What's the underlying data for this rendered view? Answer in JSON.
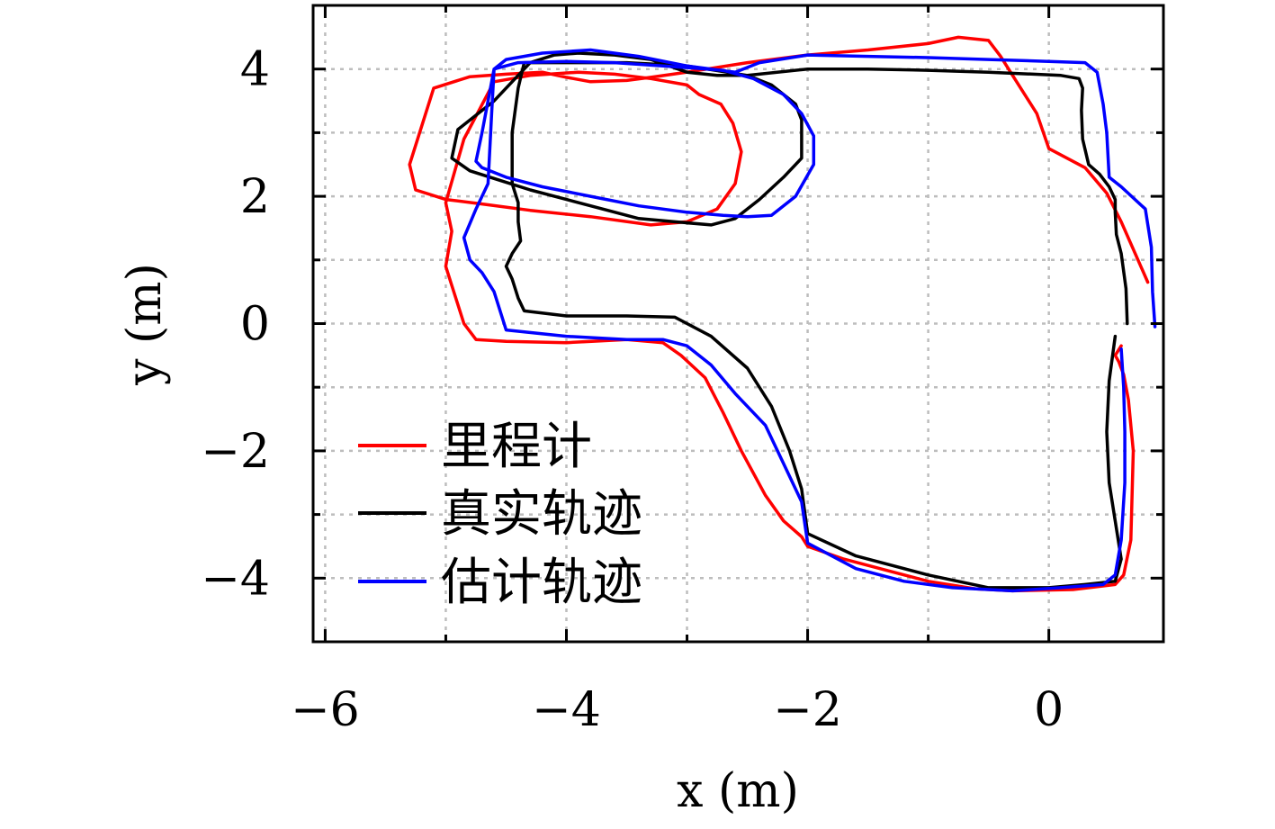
{
  "chart_data": {
    "type": "line",
    "title": "",
    "xlabel": "x (m)",
    "ylabel": "y (m)",
    "xlim": [
      -6.1,
      0.95
    ],
    "ylim": [
      -5.0,
      5.0
    ],
    "xticks": [
      -6,
      -4,
      -2,
      0
    ],
    "yticks": [
      -4,
      -2,
      0,
      2,
      4
    ],
    "grid": true,
    "legend_position": "lower-left",
    "series": [
      {
        "name": "里程计",
        "color": "#ff0000",
        "x": [
          0.82,
          0.6,
          0.48,
          0.3,
          0.0,
          -0.1,
          -0.3,
          -0.4,
          -0.5,
          -0.75,
          -1.0,
          -1.5,
          -2.0,
          -2.5,
          -3.0,
          -3.3,
          -3.5,
          -3.8,
          -4.0,
          -4.2,
          -4.5,
          -4.8,
          -5.1,
          -5.3,
          -5.25,
          -5.0,
          -4.7,
          -4.3,
          -3.8,
          -3.3,
          -3.0,
          -2.75,
          -2.6,
          -2.55,
          -2.62,
          -2.72,
          -2.9,
          -3.0,
          -3.3,
          -3.6,
          -3.9,
          -4.3,
          -4.6,
          -4.85,
          -5.0,
          -4.95,
          -5.0,
          -4.95,
          -4.85,
          -4.75,
          -4.5,
          -4.0,
          -3.5,
          -3.2,
          -3.05,
          -2.85,
          -2.7,
          -2.55,
          -2.35,
          -2.2,
          -2.05,
          -2.0,
          -1.7,
          -1.4,
          -1.0,
          -0.6,
          -0.3,
          0.2,
          0.55,
          0.62,
          0.68,
          0.7,
          0.66,
          0.62,
          0.58,
          0.55,
          0.6
        ],
        "y": [
          0.65,
          1.6,
          2.05,
          2.45,
          2.75,
          3.3,
          3.9,
          4.2,
          4.45,
          4.5,
          4.4,
          4.3,
          4.22,
          4.1,
          3.95,
          3.87,
          3.82,
          3.8,
          3.87,
          3.95,
          3.92,
          3.88,
          3.7,
          2.5,
          2.1,
          1.95,
          1.88,
          1.78,
          1.68,
          1.55,
          1.6,
          1.8,
          2.2,
          2.7,
          3.15,
          3.45,
          3.6,
          3.75,
          3.85,
          3.92,
          3.95,
          3.9,
          3.8,
          2.9,
          1.9,
          1.45,
          0.9,
          0.6,
          0.0,
          -0.25,
          -0.28,
          -0.3,
          -0.25,
          -0.3,
          -0.5,
          -0.85,
          -1.4,
          -2.0,
          -2.7,
          -3.1,
          -3.35,
          -3.5,
          -3.7,
          -3.85,
          -4.05,
          -4.17,
          -4.2,
          -4.18,
          -4.1,
          -3.95,
          -3.4,
          -2.0,
          -1.2,
          -0.8,
          -0.6,
          -0.5,
          -0.35
        ]
      },
      {
        "name": "真实轨迹",
        "color": "#000000",
        "x": [
          0.65,
          0.64,
          0.6,
          0.56,
          0.55,
          0.55,
          0.5,
          0.42,
          0.33,
          0.28,
          0.27,
          0.28,
          0.25,
          0.1,
          -0.5,
          -1.0,
          -1.5,
          -2.0,
          -2.5,
          -2.75,
          -3.0,
          -3.3,
          -3.6,
          -3.9,
          -4.1,
          -4.3,
          -4.6,
          -4.9,
          -4.95,
          -4.8,
          -4.55,
          -4.3,
          -4.0,
          -3.7,
          -3.4,
          -3.1,
          -2.8,
          -2.6,
          -2.4,
          -2.2,
          -2.05,
          -2.05,
          -2.1,
          -2.3,
          -2.5,
          -3.0,
          -3.5,
          -4.0,
          -4.35,
          -4.4,
          -4.45,
          -4.45,
          -4.4,
          -4.4,
          -4.38,
          -4.45,
          -4.5,
          -4.45,
          -4.4,
          -4.35,
          -4.0,
          -3.5,
          -3.1,
          -2.8,
          -2.5,
          -2.3,
          -2.15,
          -2.05,
          -2.0,
          -1.6,
          -1.0,
          -0.5,
          0.0,
          0.3,
          0.55,
          0.6,
          0.55,
          0.5,
          0.48,
          0.5,
          0.55
        ],
        "y": [
          0.0,
          0.55,
          1.1,
          1.4,
          1.75,
          1.95,
          2.15,
          2.35,
          2.5,
          2.9,
          3.35,
          3.7,
          3.85,
          3.9,
          3.95,
          3.98,
          4.0,
          4.0,
          3.9,
          3.9,
          3.95,
          4.15,
          4.22,
          4.25,
          4.22,
          4.1,
          3.5,
          3.05,
          2.6,
          2.4,
          2.25,
          2.1,
          1.95,
          1.8,
          1.65,
          1.6,
          1.55,
          1.65,
          1.95,
          2.3,
          2.6,
          3.2,
          3.45,
          3.75,
          3.9,
          4.05,
          4.1,
          4.1,
          4.1,
          3.7,
          3.0,
          2.2,
          1.9,
          1.6,
          1.3,
          1.1,
          0.9,
          0.7,
          0.4,
          0.2,
          0.12,
          0.12,
          0.1,
          -0.2,
          -0.7,
          -1.3,
          -2.0,
          -2.6,
          -3.3,
          -3.65,
          -3.95,
          -4.15,
          -4.15,
          -4.1,
          -4.05,
          -3.7,
          -3.1,
          -2.5,
          -1.7,
          -0.9,
          -0.2
        ]
      },
      {
        "name": "估计轨迹",
        "color": "#0000ff",
        "x": [
          0.88,
          0.86,
          0.85,
          0.8,
          0.6,
          0.5,
          0.48,
          0.45,
          0.4,
          0.3,
          0.0,
          -0.5,
          -1.0,
          -1.5,
          -2.0,
          -2.4,
          -2.6,
          -3.0,
          -3.4,
          -3.8,
          -4.2,
          -4.5,
          -4.6,
          -4.7,
          -4.75,
          -4.7,
          -4.5,
          -4.2,
          -3.8,
          -3.4,
          -3.0,
          -2.7,
          -2.5,
          -2.3,
          -2.1,
          -1.95,
          -1.95,
          -2.05,
          -2.2,
          -2.45,
          -2.7,
          -3.2,
          -3.6,
          -4.0,
          -4.4,
          -4.6,
          -4.62,
          -4.65,
          -4.75,
          -4.85,
          -4.8,
          -4.7,
          -4.6,
          -4.5,
          -4.0,
          -3.5,
          -3.2,
          -3.0,
          -2.8,
          -2.6,
          -2.35,
          -2.2,
          -2.05,
          -2.0,
          -1.6,
          -1.2,
          -0.8,
          -0.3,
          0.1,
          0.45,
          0.55,
          0.6,
          0.63,
          0.63,
          0.62,
          0.6
        ],
        "y": [
          -0.05,
          0.5,
          1.2,
          1.8,
          2.15,
          2.3,
          3.0,
          3.45,
          3.95,
          4.1,
          4.12,
          4.15,
          4.18,
          4.2,
          4.22,
          4.1,
          3.95,
          4.05,
          4.2,
          4.3,
          4.25,
          4.15,
          4.0,
          3.0,
          2.55,
          2.45,
          2.3,
          2.15,
          2.0,
          1.85,
          1.75,
          1.7,
          1.68,
          1.7,
          2.0,
          2.5,
          2.95,
          3.3,
          3.6,
          3.85,
          3.98,
          4.05,
          4.1,
          4.12,
          4.1,
          4.0,
          3.3,
          2.2,
          1.8,
          1.35,
          1.0,
          0.8,
          0.5,
          -0.1,
          -0.2,
          -0.25,
          -0.25,
          -0.35,
          -0.65,
          -1.1,
          -1.6,
          -2.2,
          -2.8,
          -3.45,
          -3.85,
          -4.05,
          -4.15,
          -4.2,
          -4.15,
          -4.1,
          -3.95,
          -3.4,
          -2.5,
          -1.7,
          -1.0,
          -0.4
        ]
      }
    ]
  }
}
